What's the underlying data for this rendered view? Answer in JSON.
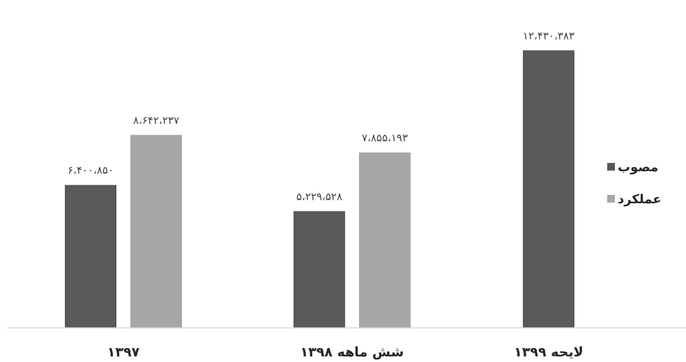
{
  "chart_data": {
    "type": "bar",
    "categories": [
      "۱۳۹۷",
      "شش ماهه ۱۳۹۸",
      "لایحه ۱۳۹۹"
    ],
    "series": [
      {
        "name": "مصوب",
        "color": "#595959",
        "values": [
          6400850,
          5229528,
          12430383
        ],
        "labels": [
          "۶،۴۰۰،۸۵۰",
          "۵،۲۲۹،۵۲۸",
          "۱۲،۴۳۰،۳۸۳"
        ]
      },
      {
        "name": "عملکرد",
        "color": "#a6a6a6",
        "values": [
          8642237,
          7855193,
          null
        ],
        "labels": [
          "۸،۶۴۲،۲۳۷",
          "۷،۸۵۵،۱۹۳",
          null
        ]
      }
    ],
    "ylim": [
      0,
      13500000
    ],
    "grid": false,
    "legend_position": "right",
    "title": "",
    "xlabel": "",
    "ylabel": ""
  }
}
